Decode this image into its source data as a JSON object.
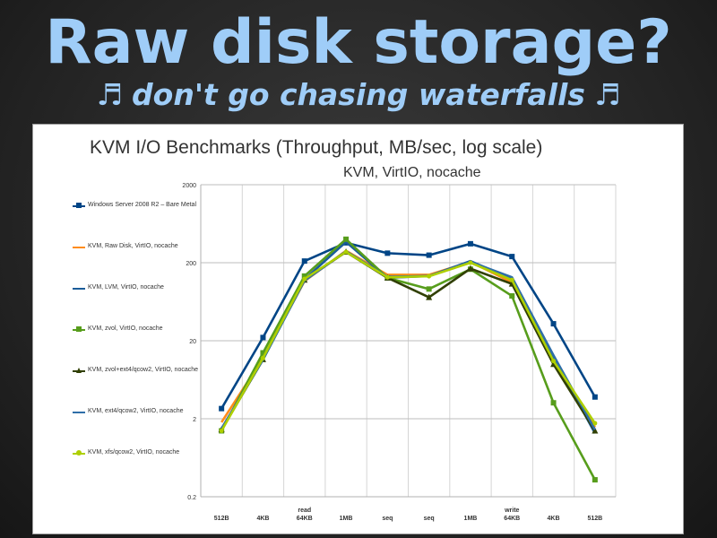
{
  "slide": {
    "title": "Raw disk storage?",
    "subtitle": "don't go chasing waterfalls",
    "note_icon_left": "♬",
    "note_icon_right": "♬"
  },
  "chart_data": {
    "type": "line",
    "title": "KVM I/O Benchmarks (Throughput, MB/sec, log scale)",
    "subtitle": "KVM, VirtIO, nocache",
    "y_scale": "log",
    "ylim": [
      0.2,
      2000
    ],
    "y_ticks": [
      "0.2",
      "2",
      "20",
      "200",
      "2000"
    ],
    "categories": [
      {
        "label": "512B",
        "group": ""
      },
      {
        "label": "4KB",
        "group": ""
      },
      {
        "label": "64KB",
        "group": "read"
      },
      {
        "label": "1MB",
        "group": ""
      },
      {
        "label": "seq",
        "group": ""
      },
      {
        "label": "seq",
        "group": ""
      },
      {
        "label": "1MB",
        "group": ""
      },
      {
        "label": "64KB",
        "group": "write"
      },
      {
        "label": "4KB",
        "group": ""
      },
      {
        "label": "512B",
        "group": ""
      }
    ],
    "grid": true,
    "legend_position": "left",
    "series": [
      {
        "name": "Windows Server 2008 R2 – Bare Metal",
        "color": "#004586",
        "marker": "square",
        "values": [
          2.7,
          22,
          210,
          360,
          265,
          250,
          350,
          240,
          33,
          3.8
        ]
      },
      {
        "name": "KVM, Raw Disk, VirtIO, nocache",
        "color": "#ff8c1a",
        "marker": "none",
        "values": [
          1.8,
          12,
          116,
          285,
          140,
          140,
          205,
          112,
          10.5,
          1.55
        ]
      },
      {
        "name": "KVM, LVM, VirtIO, nocache",
        "color": "#1a5c99",
        "marker": "none",
        "values": [
          1.45,
          11.5,
          122,
          370,
          128,
          135,
          210,
          124,
          12.5,
          1.3
        ]
      },
      {
        "name": "KVM, zvol, VirtIO, nocache",
        "color": "#579d1c",
        "marker": "square",
        "values": [
          1.4,
          14,
          135,
          400,
          128,
          92,
          165,
          75,
          3.2,
          0.33
        ]
      },
      {
        "name": "KVM, zvol+ext4/qcow2, VirtIO, nocache",
        "color": "#314004",
        "marker": "triangle",
        "values": [
          1.45,
          11.5,
          120,
          275,
          128,
          72,
          168,
          107,
          10,
          1.4
        ]
      },
      {
        "name": "KVM, ext4/qcow2, VirtIO, nocache",
        "color": "#2e6ea8",
        "marker": "none",
        "values": [
          1.5,
          11.5,
          118,
          280,
          132,
          135,
          205,
          130,
          13,
          1.45
        ]
      },
      {
        "name": "KVM, xfs/qcow2, VirtIO, nocache",
        "color": "#aecf00",
        "marker": "circle",
        "values": [
          1.4,
          12,
          124,
          275,
          130,
          134,
          200,
          120,
          11,
          1.75
        ]
      }
    ]
  }
}
